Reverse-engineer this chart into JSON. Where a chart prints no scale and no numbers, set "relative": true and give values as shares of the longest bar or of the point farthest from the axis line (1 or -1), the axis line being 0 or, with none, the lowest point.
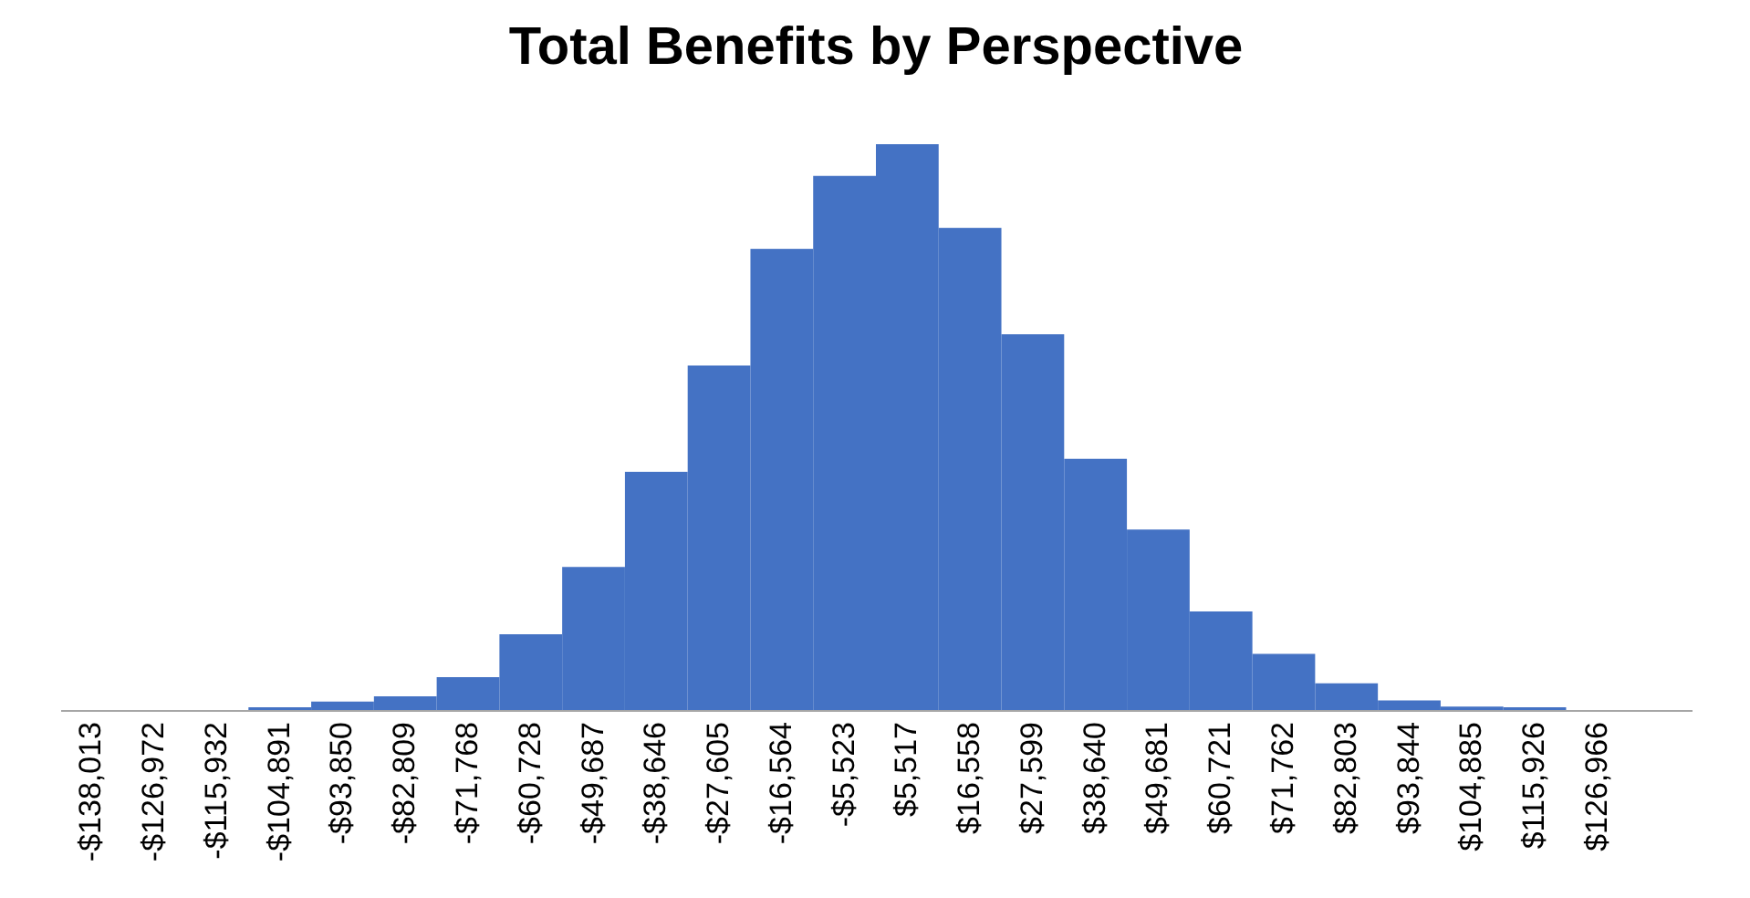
{
  "chart_data": {
    "type": "bar",
    "title": "Total Benefits by Perspective",
    "relative": true,
    "color": "#4472c4",
    "grid": false,
    "categories": [
      "-$138,013",
      "-$126,972",
      "-$115,932",
      "-$104,891",
      "-$93,850",
      "-$82,809",
      "-$71,768",
      "-$60,728",
      "-$49,687",
      "-$38,646",
      "-$27,605",
      "-$16,564",
      "-$5,523",
      "$5,517",
      "$16,558",
      "$27,599",
      "$38,640",
      "$49,681",
      "$60,721",
      "$71,762",
      "$82,803",
      "$93,844",
      "$104,885",
      "$115,926",
      "$126,966",
      null
    ],
    "values": [
      0,
      0,
      0,
      0.005,
      0.015,
      0.024,
      0.058,
      0.134,
      0.253,
      0.421,
      0.609,
      0.815,
      0.944,
      1,
      0.852,
      0.664,
      0.444,
      0.319,
      0.174,
      0.099,
      0.047,
      0.017,
      0.006,
      0.005,
      0,
      0
    ]
  }
}
